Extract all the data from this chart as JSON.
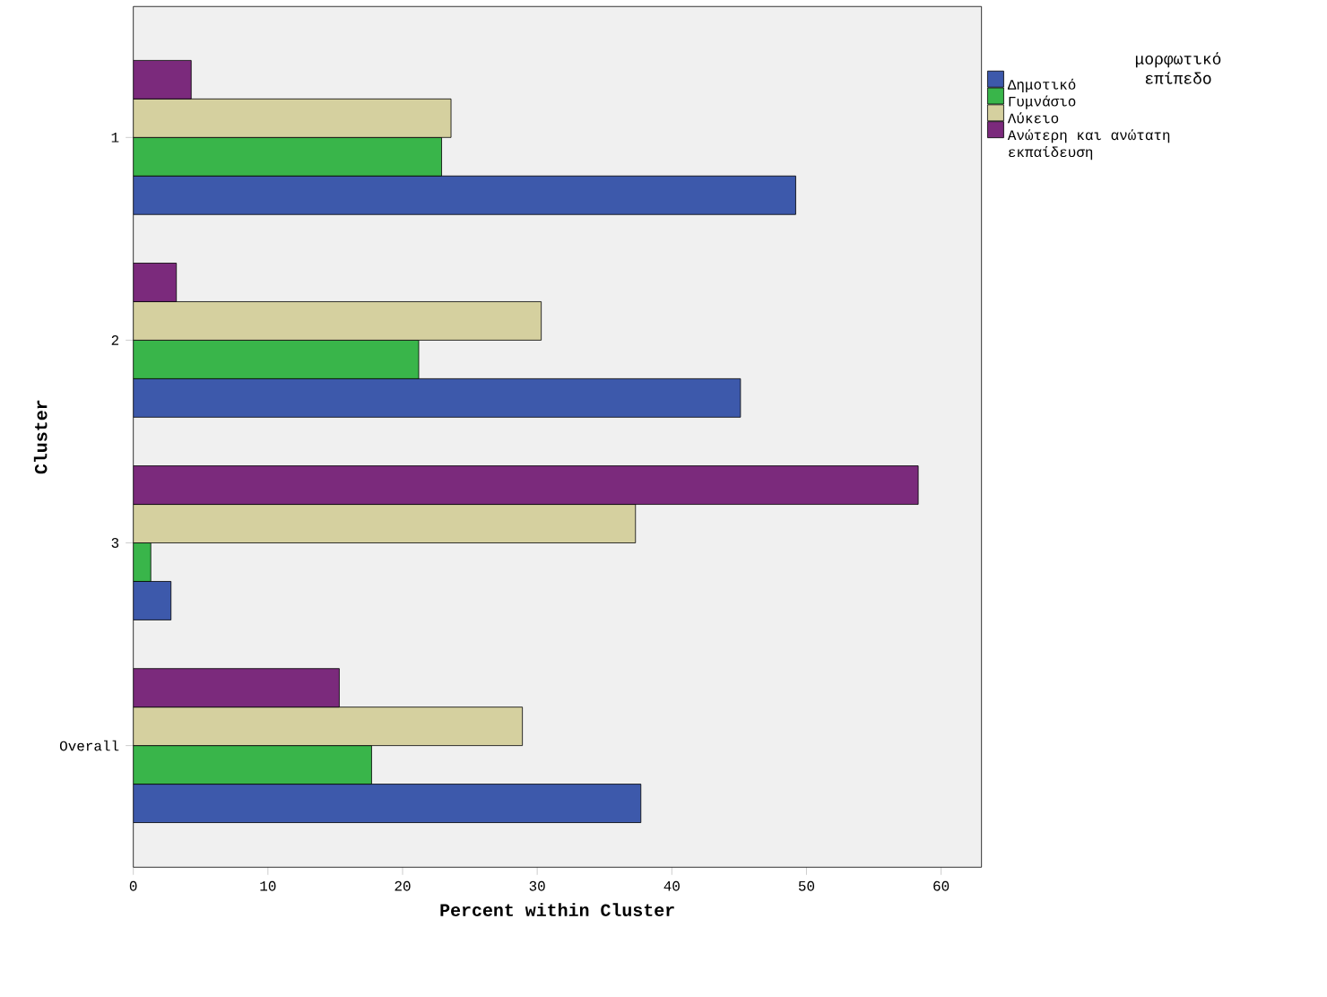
{
  "chart_data": {
    "type": "bar",
    "orientation": "horizontal",
    "xlabel": "Percent within Cluster",
    "ylabel": "Cluster",
    "legend_title": "μορφωτικό επίπεδο",
    "legend": "right",
    "categories": [
      "1",
      "2",
      "3",
      "Overall"
    ],
    "series": [
      {
        "name": "Δημοτικό",
        "color": "#3d59ab",
        "values": [
          49.2,
          45.1,
          2.8,
          37.7
        ]
      },
      {
        "name": "Γυμνάσιο",
        "color": "#39b54a",
        "values": [
          22.9,
          21.2,
          1.3,
          17.7
        ]
      },
      {
        "name": "Λύκειο",
        "color": "#d5d09f",
        "values": [
          23.6,
          30.3,
          37.3,
          28.9
        ]
      },
      {
        "name": "Ανώτερη και ανώτατη εκπαίδευση",
        "color": "#7b2a7c",
        "values": [
          4.3,
          3.2,
          58.3,
          15.3
        ]
      }
    ],
    "xlim": [
      0,
      63
    ],
    "xticks": [
      0,
      10,
      20,
      30,
      40,
      50,
      60
    ]
  }
}
